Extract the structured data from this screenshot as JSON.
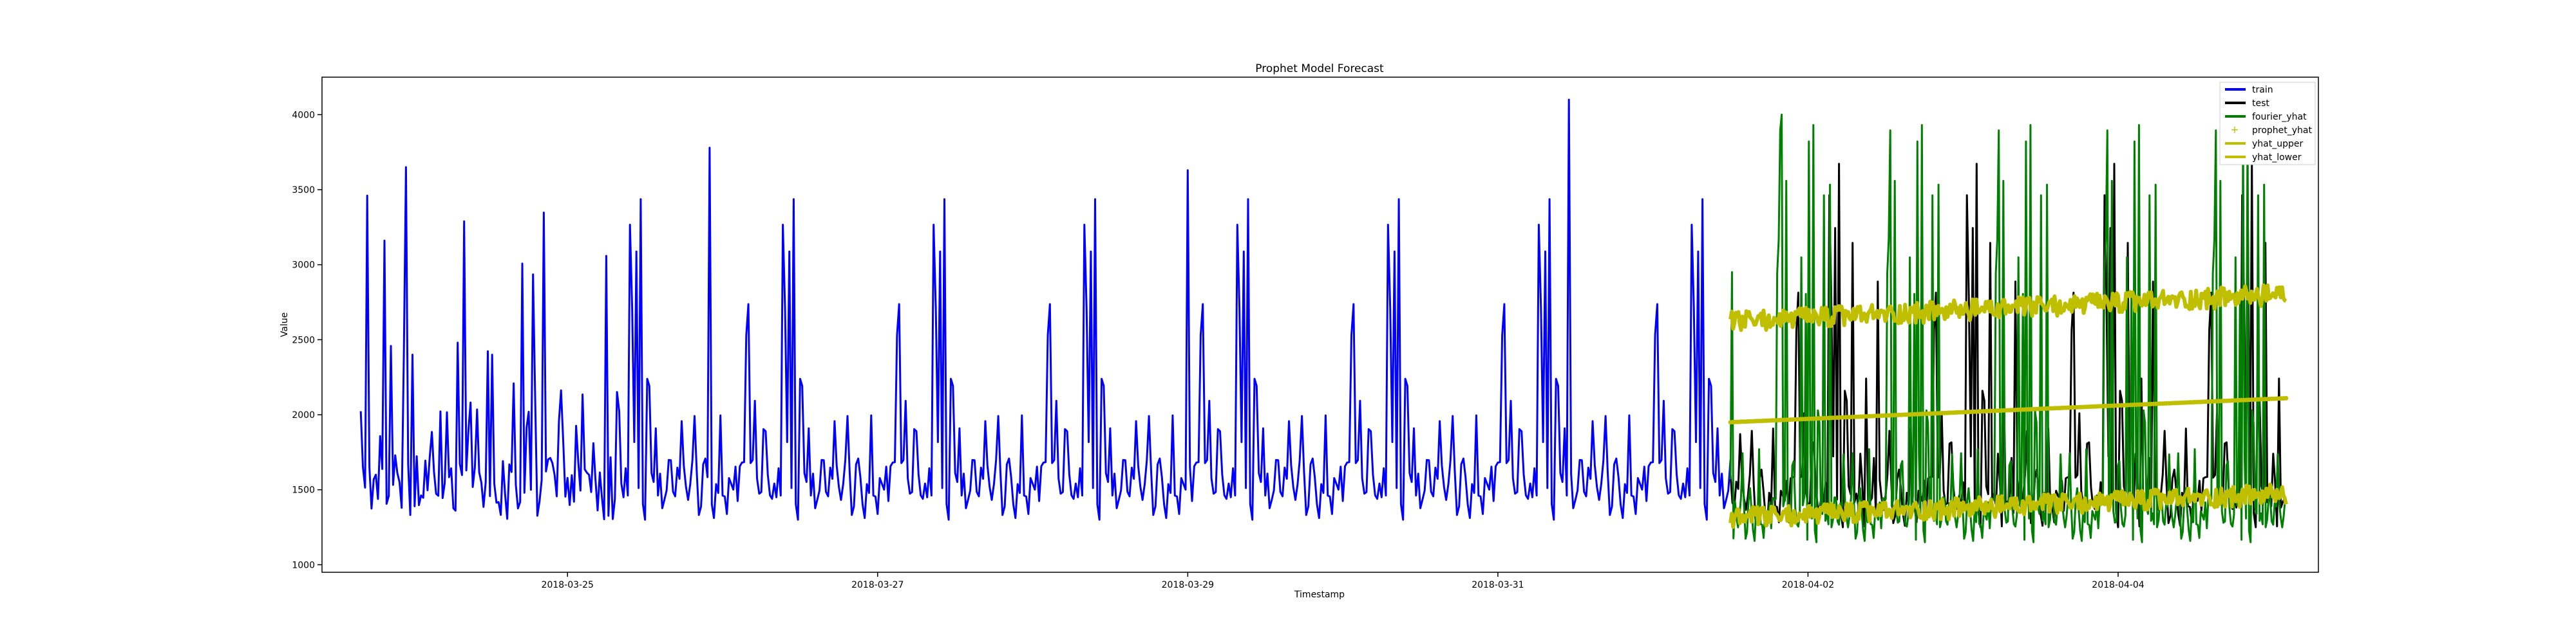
{
  "chart_data": {
    "type": "line",
    "title": "Prophet Model Forecast",
    "xlabel": "Timestamp",
    "ylabel": "Value",
    "xlim": [
      "2018-03-23T10:00",
      "2018-04-05T07:00"
    ],
    "ylim": [
      950,
      4250
    ],
    "x_ticks": [
      "2018-03-25",
      "2018-03-27",
      "2018-03-29",
      "2018-03-31",
      "2018-04-02",
      "2018-04-04"
    ],
    "y_ticks": [
      1000,
      1500,
      2000,
      2500,
      3000,
      3500,
      4000
    ],
    "grid": false,
    "legend_position": "top-right",
    "series": [
      {
        "name": "train",
        "color": "#0000ff",
        "style": "line",
        "x_start": "2018-03-23T16:00",
        "x_end": "2018-04-01T12:00",
        "baseline_range": [
          1300,
          1700
        ],
        "spike_max_range": [
          2400,
          3500
        ],
        "notable_peaks": [
          {
            "x": "2018-03-23T23:00",
            "y": 3650
          },
          {
            "x": "2018-03-25T22:00",
            "y": 3780
          },
          {
            "x": "2018-03-29T00:00",
            "y": 3630
          },
          {
            "x": "2018-03-31T11:00",
            "y": 4100
          }
        ]
      },
      {
        "name": "test",
        "color": "#000000",
        "style": "line",
        "x_start": "2018-04-01T12:00",
        "x_end": "2018-04-05T02:00",
        "baseline_range": [
          1250,
          1600
        ],
        "spike_max_range": [
          2400,
          3750
        ]
      },
      {
        "name": "fourier_yhat",
        "color": "#008000",
        "style": "line",
        "x_start": "2018-04-01T12:00",
        "x_end": "2018-04-05T02:00",
        "baseline_range": [
          1150,
          1450
        ],
        "spike_max_range": [
          2800,
          4000
        ],
        "notable_peaks": [
          {
            "x": "2018-04-01T20:00",
            "y": 4000
          }
        ]
      },
      {
        "name": "prophet_yhat",
        "color": "#bfbf00",
        "style": "markers",
        "x": [
          "2018-04-01T12:00",
          "2018-04-05T02:00"
        ],
        "y": [
          1950,
          2110
        ]
      },
      {
        "name": "yhat_upper",
        "color": "#bfbf00",
        "style": "line",
        "x": [
          "2018-04-01T12:00",
          "2018-04-05T02:00"
        ],
        "y": [
          2620,
          2800
        ],
        "band_width": 140
      },
      {
        "name": "yhat_lower",
        "color": "#bfbf00",
        "style": "line",
        "x": [
          "2018-04-01T12:00",
          "2018-04-05T02:00"
        ],
        "y": [
          1310,
          1470
        ],
        "band_width": 140
      }
    ]
  }
}
